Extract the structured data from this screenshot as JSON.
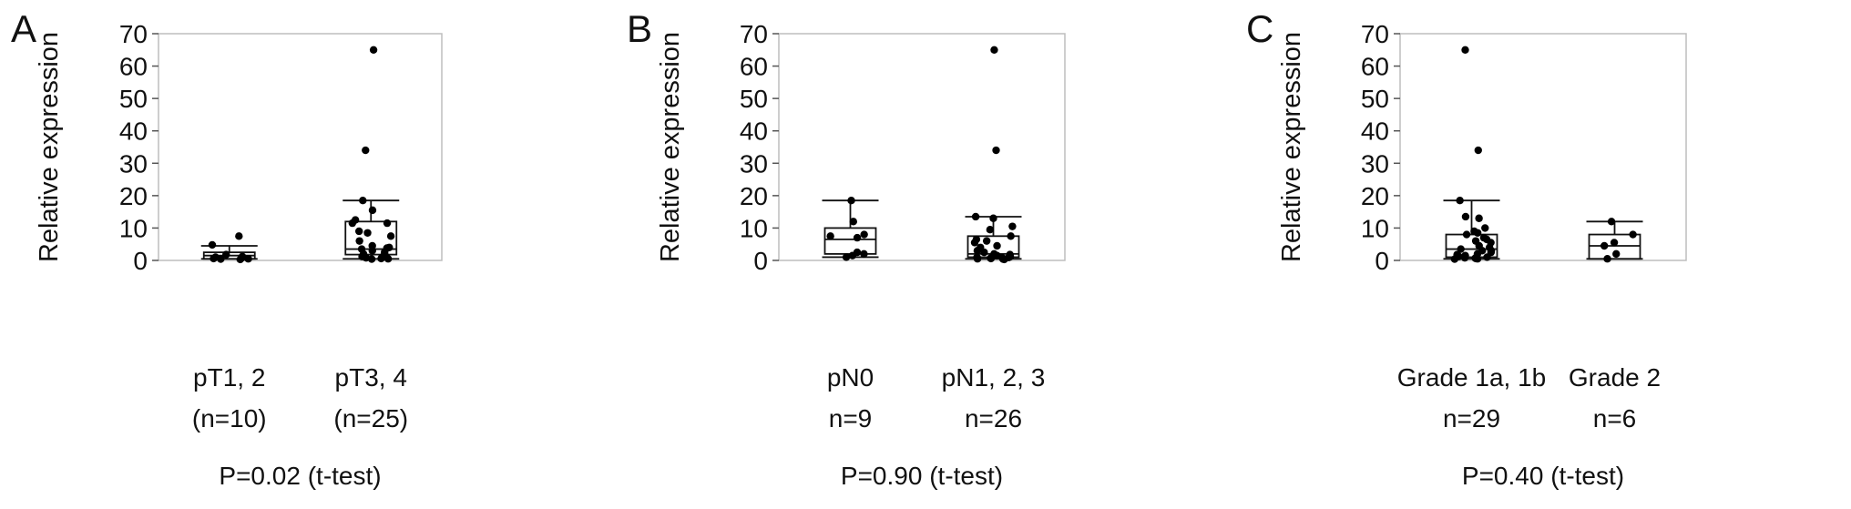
{
  "chart_data": [
    {
      "type": "box",
      "panel": "A",
      "ylabel": "Relative expression",
      "ylim": [
        0,
        70
      ],
      "yticks": [
        0,
        10,
        20,
        30,
        40,
        50,
        60,
        70
      ],
      "grid": false,
      "categories": [
        "pT1, 2",
        "pT3, 4"
      ],
      "n_labels": [
        "(n=10)",
        "(n=25)"
      ],
      "footnote": "P=0.02 (t-test)",
      "boxes": [
        {
          "whisker_low": 0.5,
          "q1": 0.5,
          "median": 1.5,
          "q3": 2.5,
          "whisker_high": 4.5,
          "points": [
            7.5,
            4.8,
            1.8,
            1.2,
            1.0,
            0.8,
            0.6,
            0.5,
            0.4,
            0.3
          ]
        },
        {
          "whisker_low": 0.5,
          "q1": 1.8,
          "median": 3.5,
          "q3": 12,
          "whisker_high": 18.5,
          "points": [
            65,
            34,
            18.5,
            15.5,
            12.5,
            11.5,
            11.5,
            9,
            8.5,
            7.5,
            6,
            4.5,
            4,
            3.8,
            3.5,
            3,
            2.5,
            2,
            1.5,
            1.2,
            1,
            0.8,
            0.6,
            0.5,
            0.4
          ]
        }
      ]
    },
    {
      "type": "box",
      "panel": "B",
      "ylabel": "Relative expression",
      "ylim": [
        0,
        70
      ],
      "yticks": [
        0,
        10,
        20,
        30,
        40,
        50,
        60,
        70
      ],
      "grid": false,
      "categories": [
        "pN0",
        "pN1, 2, 3"
      ],
      "n_labels": [
        "n=9",
        "n=26"
      ],
      "footnote": "P=0.90 (t-test)",
      "boxes": [
        {
          "whisker_low": 1,
          "q1": 2,
          "median": 6.5,
          "q3": 10,
          "whisker_high": 18.5,
          "points": [
            18.5,
            12,
            8,
            7.5,
            7,
            2.5,
            2,
            1.5,
            1
          ]
        },
        {
          "whisker_low": 0.5,
          "q1": 1,
          "median": 2,
          "q3": 7.5,
          "whisker_high": 13.5,
          "points": [
            65,
            34,
            13.5,
            13,
            10.5,
            9.5,
            7.5,
            6.5,
            6,
            5.5,
            4.5,
            4,
            3,
            2.5,
            2,
            1.8,
            1.5,
            1.2,
            1,
            0.9,
            0.8,
            0.7,
            0.6,
            0.5,
            0.4,
            0.3
          ]
        }
      ]
    },
    {
      "type": "box",
      "panel": "C",
      "ylabel": "Relative expression",
      "ylim": [
        0,
        70
      ],
      "yticks": [
        0,
        10,
        20,
        30,
        40,
        50,
        60,
        70
      ],
      "grid": false,
      "categories": [
        "Grade 1a, 1b",
        "Grade 2"
      ],
      "n_labels": [
        "n=29",
        "n=6"
      ],
      "footnote": "P=0.40 (t-test)",
      "boxes": [
        {
          "whisker_low": 0.5,
          "q1": 1,
          "median": 3.5,
          "q3": 8,
          "whisker_high": 18.5,
          "points": [
            65,
            34,
            18.5,
            13.5,
            13,
            10,
            9,
            8.5,
            8,
            7,
            6.5,
            6,
            5.5,
            4.5,
            4,
            3.5,
            3,
            3,
            2.5,
            2,
            1.8,
            1.5,
            1.2,
            1,
            0.8,
            0.7,
            0.6,
            0.5,
            0.4
          ]
        },
        {
          "whisker_low": 0.5,
          "q1": 0.5,
          "median": 4.5,
          "q3": 8,
          "whisker_high": 12,
          "points": [
            12,
            8,
            5.5,
            4.5,
            2,
            0.5
          ]
        }
      ]
    }
  ]
}
